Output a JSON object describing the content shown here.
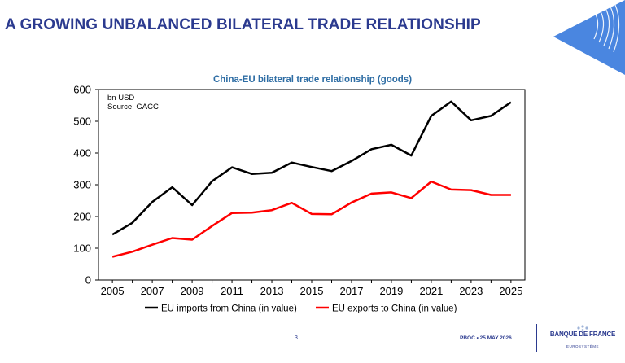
{
  "slide": {
    "title": "A GROWING UNBALANCED BILATERAL TRADE RELATIONSHIP",
    "footer_page": "3",
    "footer_date": "PBOC • 25 MAY 2026",
    "logo_name": "BANQUE DE FRANCE",
    "logo_sub": "EUROSYSTÈME"
  },
  "colors": {
    "title": "#2b3a8f",
    "chart_title": "#2e6da4",
    "imports": "#000000",
    "exports": "#ff0000"
  },
  "chart_data": {
    "type": "line",
    "title": "China-EU bilateral trade relationship (goods)",
    "annotations": [
      "bn USD",
      "Source: GACC"
    ],
    "x": [
      2005,
      2006,
      2007,
      2008,
      2009,
      2010,
      2011,
      2012,
      2013,
      2014,
      2015,
      2016,
      2017,
      2018,
      2019,
      2020,
      2021,
      2022,
      2023,
      2024,
      2025
    ],
    "x_ticks": [
      2005,
      2007,
      2009,
      2011,
      2013,
      2015,
      2017,
      2019,
      2021,
      2023,
      2025
    ],
    "ylim": [
      0,
      600
    ],
    "y_ticks": [
      0,
      100,
      200,
      300,
      400,
      500,
      600
    ],
    "grid": false,
    "legend": "bottom",
    "series": [
      {
        "name": "EU imports from China (in value)",
        "color": "#000000",
        "values": [
          143,
          180,
          246,
          292,
          236,
          311,
          355,
          334,
          338,
          370,
          356,
          343,
          375,
          412,
          426,
          392,
          517,
          562,
          503,
          517,
          560
        ]
      },
      {
        "name": "EU exports to China (in value)",
        "color": "#ff0000",
        "values": [
          73,
          89,
          111,
          132,
          127,
          170,
          211,
          212,
          220,
          243,
          208,
          207,
          244,
          272,
          276,
          258,
          310,
          285,
          283,
          268,
          268
        ]
      }
    ]
  }
}
